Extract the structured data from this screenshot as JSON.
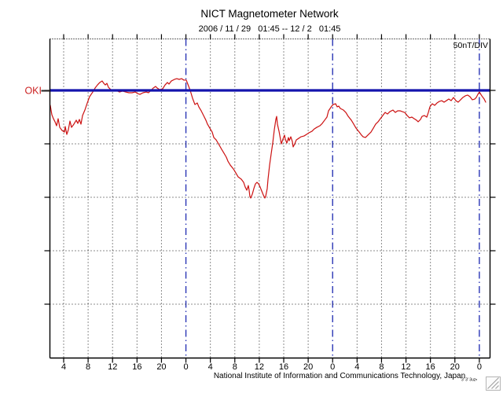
{
  "window": {
    "background": "#ffffff"
  },
  "colors": {
    "trace": "#cc1111",
    "baseline": "#1414ad",
    "day_line": "#2a35b5",
    "grid": "#1a1a1a",
    "frame": "#000000",
    "station_label": "#cc2222",
    "grip": "#9a9a9a"
  },
  "chart_data": {
    "type": "line",
    "title": "NICT Magnetometer Network",
    "date_range_label": "2006 / 11 / 29   01:45 -- 12 / 2   01:45",
    "station": "OKI",
    "scale_label": "50nT/DIV",
    "footer": "National Institute of Information and Communications Technology, Japan",
    "fine_print": "'3' 3' 3uz▪",
    "y_unit": "nT",
    "y_units_per_division": 50,
    "x_unit": "hour",
    "x_range_hours": [
      0,
      72
    ],
    "x_start_time": "01:45",
    "grid": true,
    "legend_position": "none",
    "y_axis": {
      "ticks_nT": [
        0,
        -50,
        -100,
        -150,
        -200
      ],
      "gridlines_nT": [
        -50,
        -100,
        -150,
        -200
      ],
      "baseline_nT": 0
    },
    "x_ticks": [
      {
        "t": 2.25,
        "label": "4",
        "day_boundary": false
      },
      {
        "t": 6.25,
        "label": "8",
        "day_boundary": false
      },
      {
        "t": 10.25,
        "label": "12",
        "day_boundary": false
      },
      {
        "t": 14.25,
        "label": "16",
        "day_boundary": false
      },
      {
        "t": 18.25,
        "label": "20",
        "day_boundary": false
      },
      {
        "t": 22.25,
        "label": "0",
        "day_boundary": true
      },
      {
        "t": 26.25,
        "label": "4",
        "day_boundary": false
      },
      {
        "t": 30.25,
        "label": "8",
        "day_boundary": false
      },
      {
        "t": 34.25,
        "label": "12",
        "day_boundary": false
      },
      {
        "t": 38.25,
        "label": "16",
        "day_boundary": false
      },
      {
        "t": 42.25,
        "label": "20",
        "day_boundary": false
      },
      {
        "t": 46.25,
        "label": "0",
        "day_boundary": true
      },
      {
        "t": 50.25,
        "label": "4",
        "day_boundary": false
      },
      {
        "t": 54.25,
        "label": "8",
        "day_boundary": false
      },
      {
        "t": 58.25,
        "label": "12",
        "day_boundary": false
      },
      {
        "t": 62.25,
        "label": "16",
        "day_boundary": false
      },
      {
        "t": 66.25,
        "label": "20",
        "day_boundary": false
      },
      {
        "t": 70.25,
        "label": "0",
        "day_boundary": true
      }
    ],
    "series": [
      {
        "name": "OKI",
        "color": "#cc1111",
        "points": [
          [
            0.06,
            -14
          ],
          [
            0.32,
            -22.8
          ],
          [
            0.58,
            -26.5
          ],
          [
            0.84,
            -29.4
          ],
          [
            1.09,
            -33.1
          ],
          [
            1.35,
            -26.5
          ],
          [
            1.61,
            -34.6
          ],
          [
            1.99,
            -37.5
          ],
          [
            2.38,
            -39
          ],
          [
            2.51,
            -33.8
          ],
          [
            2.76,
            -41.2
          ],
          [
            3.02,
            -36.8
          ],
          [
            3.28,
            -28.7
          ],
          [
            3.54,
            -34.6
          ],
          [
            3.92,
            -31.6
          ],
          [
            4.31,
            -27.9
          ],
          [
            4.56,
            -30.9
          ],
          [
            4.82,
            -27.2
          ],
          [
            5.08,
            -31.6
          ],
          [
            5.34,
            -23.5
          ],
          [
            5.72,
            -18.4
          ],
          [
            6.11,
            -11.8
          ],
          [
            6.49,
            -5.9
          ],
          [
            7.01,
            -1.5
          ],
          [
            7.39,
            2.2
          ],
          [
            7.78,
            5.1
          ],
          [
            8.16,
            7.4
          ],
          [
            8.55,
            8.8
          ],
          [
            8.81,
            6.6
          ],
          [
            9.06,
            5.1
          ],
          [
            9.32,
            6.6
          ],
          [
            9.58,
            2.9
          ],
          [
            9.96,
            0.7
          ],
          [
            10.35,
            -0.7
          ],
          [
            10.86,
            0
          ],
          [
            11.38,
            -1.5
          ],
          [
            11.89,
            -0.7
          ],
          [
            12.41,
            -1.5
          ],
          [
            12.92,
            -2.2
          ],
          [
            13.44,
            -2.2
          ],
          [
            13.95,
            -1.5
          ],
          [
            14.34,
            -2.9
          ],
          [
            14.72,
            -3.7
          ],
          [
            15.24,
            -2.2
          ],
          [
            15.75,
            -1.5
          ],
          [
            16.14,
            -2.2
          ],
          [
            16.52,
            0
          ],
          [
            16.91,
            2.2
          ],
          [
            17.29,
            3.7
          ],
          [
            17.55,
            2.2
          ],
          [
            17.94,
            0.7
          ],
          [
            18.45,
            1.5
          ],
          [
            18.84,
            5.1
          ],
          [
            19.22,
            7.4
          ],
          [
            19.48,
            5.9
          ],
          [
            19.86,
            8.8
          ],
          [
            20.38,
            10.3
          ],
          [
            20.76,
            11
          ],
          [
            21.15,
            10.3
          ],
          [
            21.54,
            11
          ],
          [
            21.92,
            9.6
          ],
          [
            22.31,
            9.6
          ],
          [
            22.56,
            5.9
          ],
          [
            22.95,
            0
          ],
          [
            23.34,
            -7.4
          ],
          [
            23.72,
            -13.2
          ],
          [
            24.11,
            -11.8
          ],
          [
            24.36,
            -15.4
          ],
          [
            24.75,
            -19.1
          ],
          [
            25.14,
            -23.5
          ],
          [
            25.52,
            -27.9
          ],
          [
            25.78,
            -31.6
          ],
          [
            26.16,
            -35.3
          ],
          [
            26.55,
            -39
          ],
          [
            26.81,
            -44.1
          ],
          [
            27.19,
            -46.3
          ],
          [
            27.58,
            -50
          ],
          [
            28.09,
            -55.1
          ],
          [
            28.48,
            -58.8
          ],
          [
            28.86,
            -62.5
          ],
          [
            29.12,
            -66.2
          ],
          [
            29.51,
            -69.9
          ],
          [
            30.02,
            -73.5
          ],
          [
            30.41,
            -77.2
          ],
          [
            30.79,
            -80.9
          ],
          [
            31.31,
            -83.1
          ],
          [
            31.69,
            -86
          ],
          [
            31.95,
            -90.4
          ],
          [
            32.21,
            -93.4
          ],
          [
            32.46,
            -89
          ],
          [
            32.59,
            -93.4
          ],
          [
            32.72,
            -99.3
          ],
          [
            32.85,
            -100.7
          ],
          [
            33.11,
            -97.1
          ],
          [
            33.36,
            -91.9
          ],
          [
            33.62,
            -87.5
          ],
          [
            33.88,
            -86
          ],
          [
            34.14,
            -87.5
          ],
          [
            34.39,
            -90.4
          ],
          [
            34.65,
            -94.1
          ],
          [
            34.91,
            -97.8
          ],
          [
            35.16,
            -100.7
          ],
          [
            35.29,
            -99.3
          ],
          [
            35.55,
            -91.9
          ],
          [
            35.68,
            -83.1
          ],
          [
            35.94,
            -69.9
          ],
          [
            36.19,
            -59.6
          ],
          [
            36.45,
            -49.3
          ],
          [
            36.71,
            -36.8
          ],
          [
            36.96,
            -27.2
          ],
          [
            37.09,
            -24.3
          ],
          [
            37.22,
            -31.6
          ],
          [
            37.48,
            -38.2
          ],
          [
            37.74,
            -46.3
          ],
          [
            37.86,
            -50
          ],
          [
            38.12,
            -45.6
          ],
          [
            38.38,
            -41.9
          ],
          [
            38.51,
            -45.6
          ],
          [
            38.76,
            -49.3
          ],
          [
            39.02,
            -44.1
          ],
          [
            39.15,
            -47.1
          ],
          [
            39.41,
            -43.4
          ],
          [
            39.66,
            -47.8
          ],
          [
            39.79,
            -52.9
          ],
          [
            40.05,
            -50
          ],
          [
            40.31,
            -46.3
          ],
          [
            40.69,
            -44.9
          ],
          [
            41.08,
            -43.4
          ],
          [
            41.59,
            -42.6
          ],
          [
            41.98,
            -41.2
          ],
          [
            42.36,
            -39.7
          ],
          [
            42.88,
            -38.2
          ],
          [
            43.26,
            -36
          ],
          [
            43.65,
            -34.6
          ],
          [
            44.16,
            -33.1
          ],
          [
            44.55,
            -30.9
          ],
          [
            44.94,
            -27.9
          ],
          [
            45.32,
            -25
          ],
          [
            45.58,
            -19.1
          ],
          [
            45.84,
            -16.9
          ],
          [
            46.09,
            -14.7
          ],
          [
            46.35,
            -13.2
          ],
          [
            46.74,
            -12.5
          ],
          [
            47,
            -15.4
          ],
          [
            47.25,
            -14.7
          ],
          [
            47.51,
            -16.9
          ],
          [
            48.02,
            -18.4
          ],
          [
            48.41,
            -20.6
          ],
          [
            48.8,
            -24.3
          ],
          [
            49.31,
            -27.9
          ],
          [
            49.7,
            -31.6
          ],
          [
            50.08,
            -35.3
          ],
          [
            50.6,
            -39
          ],
          [
            50.98,
            -41.9
          ],
          [
            51.24,
            -43.4
          ],
          [
            51.62,
            -44.1
          ],
          [
            52.01,
            -41.9
          ],
          [
            52.52,
            -39
          ],
          [
            52.91,
            -35.3
          ],
          [
            53.29,
            -31.6
          ],
          [
            53.68,
            -29.4
          ],
          [
            54.06,
            -26.5
          ],
          [
            54.45,
            -23.5
          ],
          [
            54.84,
            -20.6
          ],
          [
            55.22,
            -22.1
          ],
          [
            55.61,
            -19.9
          ],
          [
            56.12,
            -18.4
          ],
          [
            56.51,
            -20.6
          ],
          [
            56.89,
            -19.1
          ],
          [
            57.28,
            -19.1
          ],
          [
            57.66,
            -19.9
          ],
          [
            58.05,
            -20.6
          ],
          [
            58.44,
            -23.5
          ],
          [
            58.82,
            -25.7
          ],
          [
            59.21,
            -25
          ],
          [
            59.59,
            -26.5
          ],
          [
            59.98,
            -27.9
          ],
          [
            60.24,
            -29.4
          ],
          [
            60.62,
            -27.2
          ],
          [
            60.88,
            -24.3
          ],
          [
            61.26,
            -23.5
          ],
          [
            61.65,
            -25
          ],
          [
            61.91,
            -20.6
          ],
          [
            62.16,
            -15.4
          ],
          [
            62.55,
            -12.5
          ],
          [
            62.94,
            -14
          ],
          [
            63.32,
            -11.8
          ],
          [
            63.71,
            -10.3
          ],
          [
            64.09,
            -9.6
          ],
          [
            64.48,
            -11
          ],
          [
            64.86,
            -9.6
          ],
          [
            65.25,
            -8.1
          ],
          [
            65.64,
            -9.6
          ],
          [
            66.02,
            -6.6
          ],
          [
            66.41,
            -9.6
          ],
          [
            66.79,
            -11
          ],
          [
            67.18,
            -8.8
          ],
          [
            67.56,
            -6.6
          ],
          [
            67.95,
            -5.1
          ],
          [
            68.34,
            -4.4
          ],
          [
            68.72,
            -5.9
          ],
          [
            69.11,
            -8.8
          ],
          [
            69.49,
            -8.1
          ],
          [
            69.75,
            -6.6
          ],
          [
            70.01,
            -3.7
          ],
          [
            70.26,
            -1.5
          ],
          [
            70.65,
            -5.1
          ],
          [
            71.04,
            -8.1
          ],
          [
            71.29,
            -11
          ]
        ]
      }
    ]
  }
}
